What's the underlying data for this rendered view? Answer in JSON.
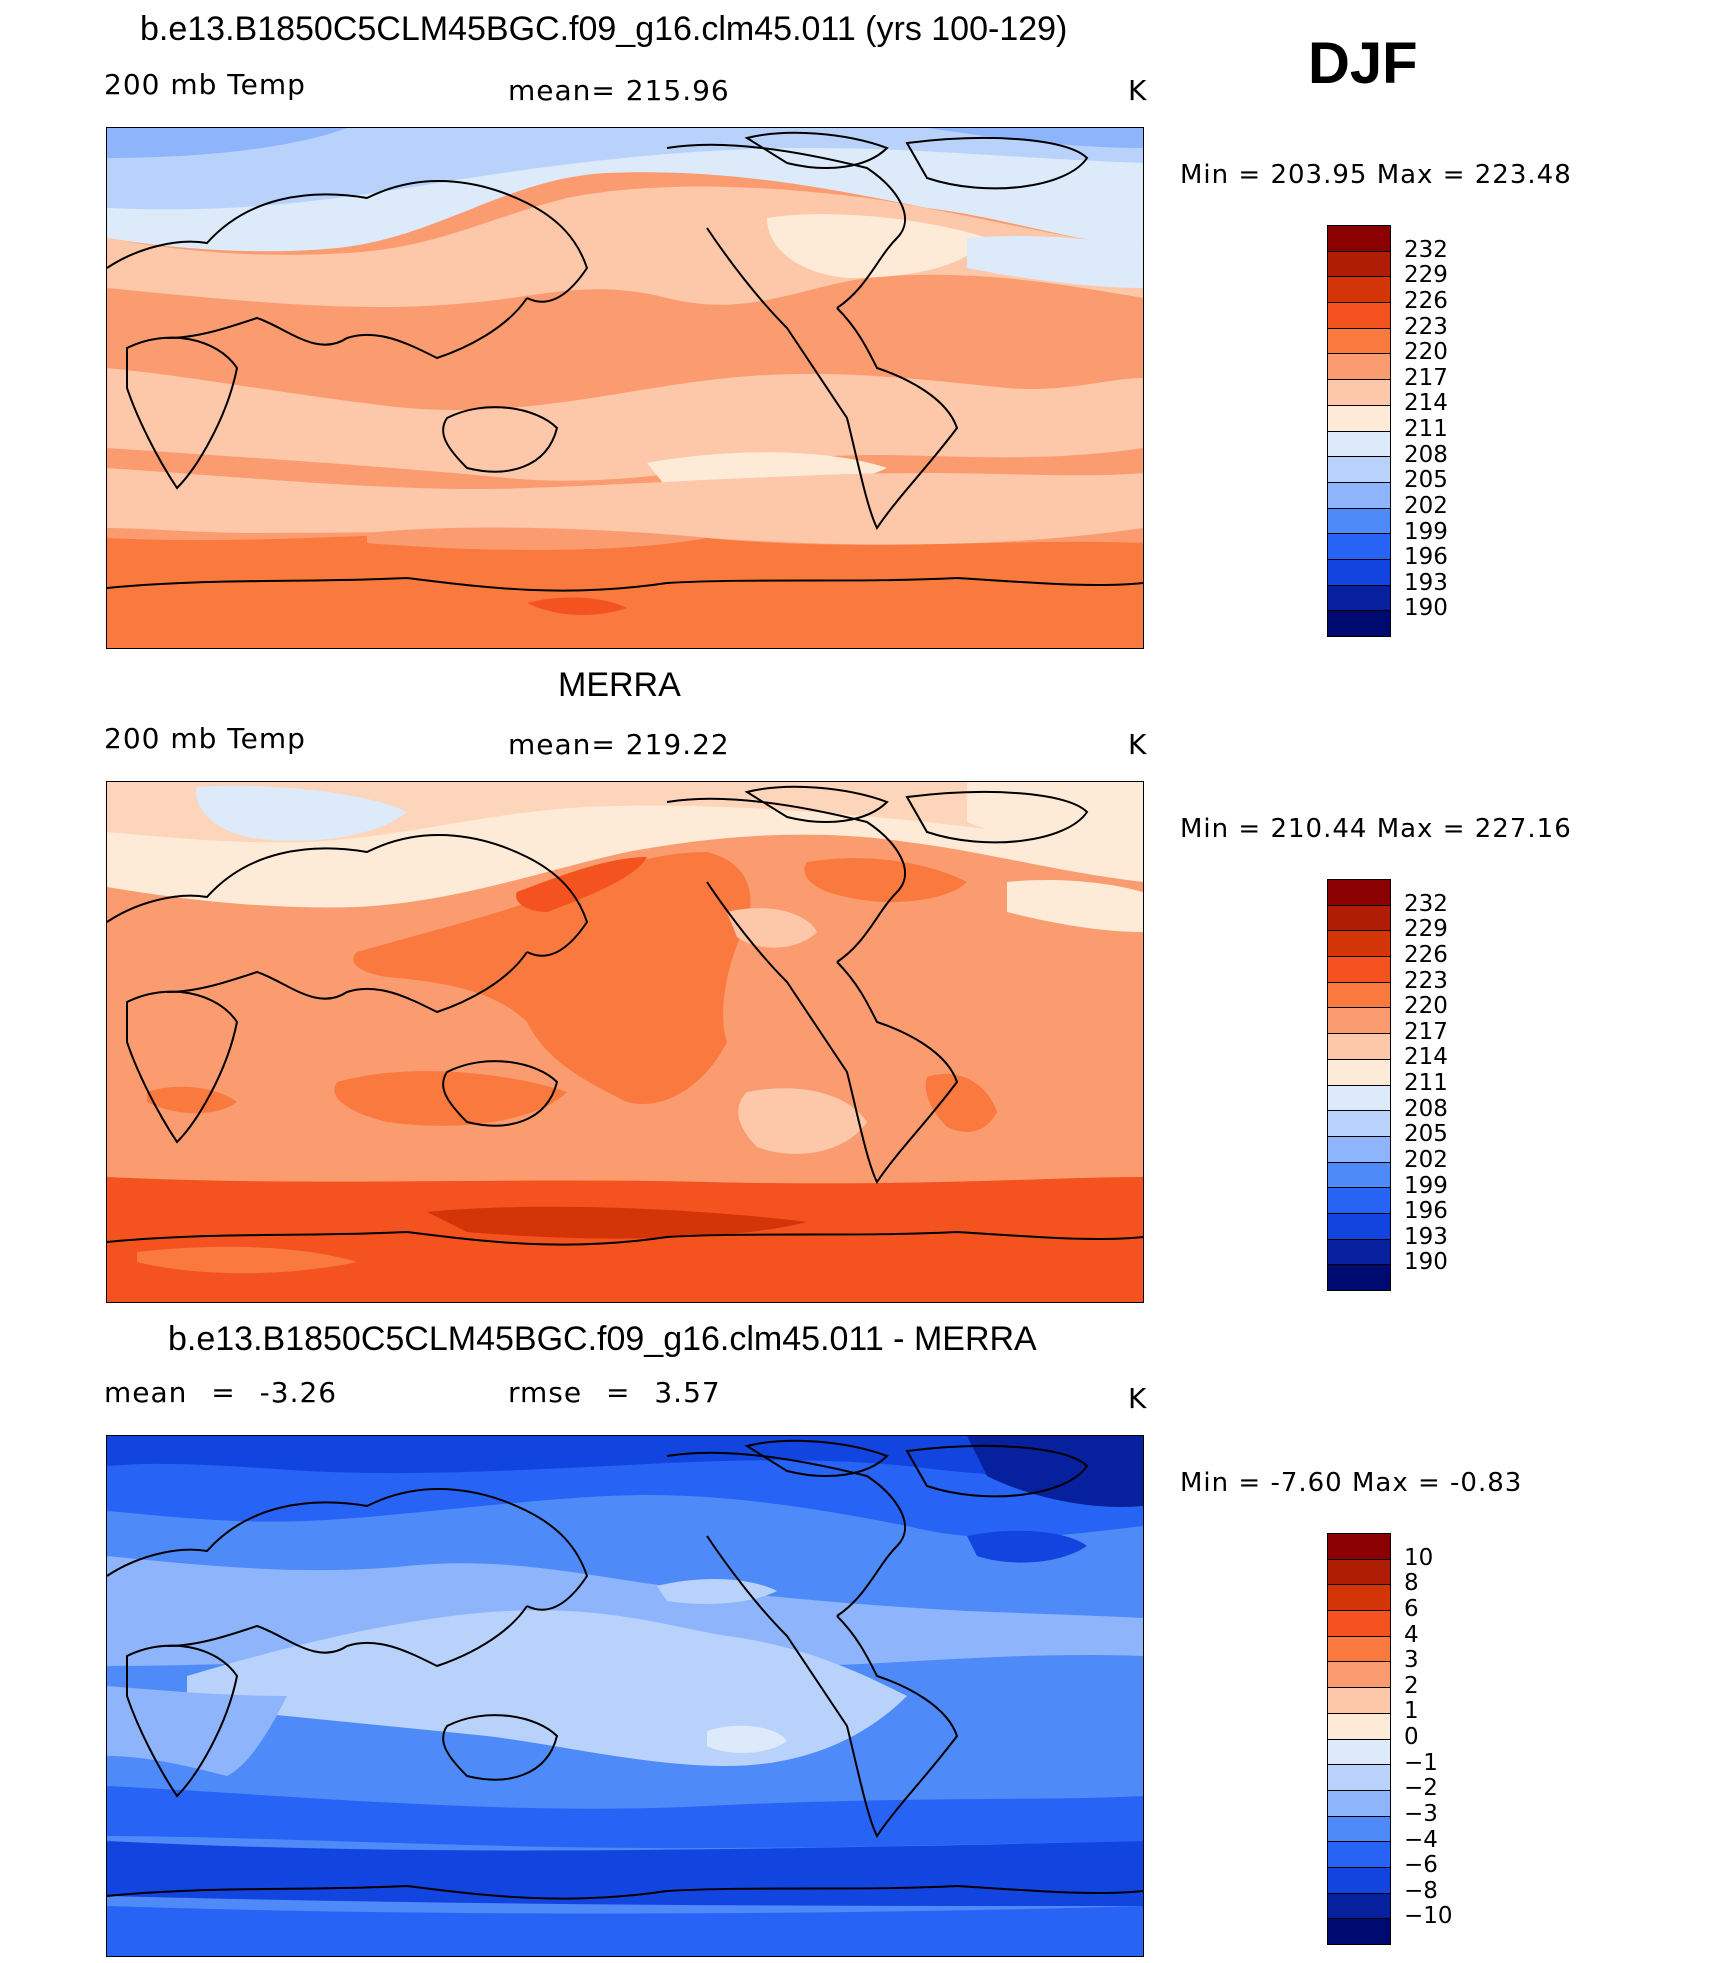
{
  "season": "DJF",
  "panels": [
    {
      "title": "b.e13.B1850C5CLM45BGC.f09_g16.clm45.011 (yrs 100-129)",
      "left_label": "200 mb Temp",
      "center_label": "mean= 215.96",
      "units": "K",
      "min_max": "Min = 203.95 Max = 223.48",
      "colorbar": {
        "labels": [
          "232",
          "229",
          "226",
          "223",
          "220",
          "217",
          "214",
          "211",
          "208",
          "205",
          "202",
          "199",
          "196",
          "193",
          "190"
        ],
        "colors": [
          "#8b0000",
          "#b01d05",
          "#d33408",
          "#f4521e",
          "#f9793f",
          "#fb9b70",
          "#fdc7a9",
          "#fdebd7",
          "#dceaf9",
          "#b9d2fb",
          "#8eb4fb",
          "#4f8af9",
          "#2763f4",
          "#1244e0",
          "#07209e",
          "#000b72"
        ]
      }
    },
    {
      "title": "MERRA",
      "left_label": "200 mb Temp",
      "center_label": "mean= 219.22",
      "units": "K",
      "min_max": "Min = 210.44 Max = 227.16",
      "colorbar": {
        "labels": [
          "232",
          "229",
          "226",
          "223",
          "220",
          "217",
          "214",
          "211",
          "208",
          "205",
          "202",
          "199",
          "196",
          "193",
          "190"
        ],
        "colors": [
          "#8b0000",
          "#b01d05",
          "#d33408",
          "#f4521e",
          "#f9793f",
          "#fb9b70",
          "#fdc7a9",
          "#fdebd7",
          "#dceaf9",
          "#b9d2fb",
          "#8eb4fb",
          "#4f8af9",
          "#2763f4",
          "#1244e0",
          "#07209e",
          "#000b72"
        ]
      }
    },
    {
      "title": "b.e13.B1850C5CLM45BGC.f09_g16.clm45.011 - MERRA",
      "left_label": "mean = -3.26",
      "center_label": "rmse = 3.57",
      "units": "K",
      "min_max": "Min = -7.60 Max = -0.83",
      "colorbar": {
        "labels": [
          "10",
          "8",
          "6",
          "4",
          "3",
          "2",
          "1",
          "0",
          "−1",
          "−2",
          "−3",
          "−4",
          "−6",
          "−8",
          "−10"
        ],
        "colors": [
          "#8b0000",
          "#b01d05",
          "#d33408",
          "#f4521e",
          "#f9793f",
          "#fb9b70",
          "#fdc7a9",
          "#fdebd7",
          "#dceaf9",
          "#b9d2fb",
          "#8eb4fb",
          "#4f8af9",
          "#2763f4",
          "#1244e0",
          "#07209e",
          "#000b72"
        ]
      }
    }
  ]
}
